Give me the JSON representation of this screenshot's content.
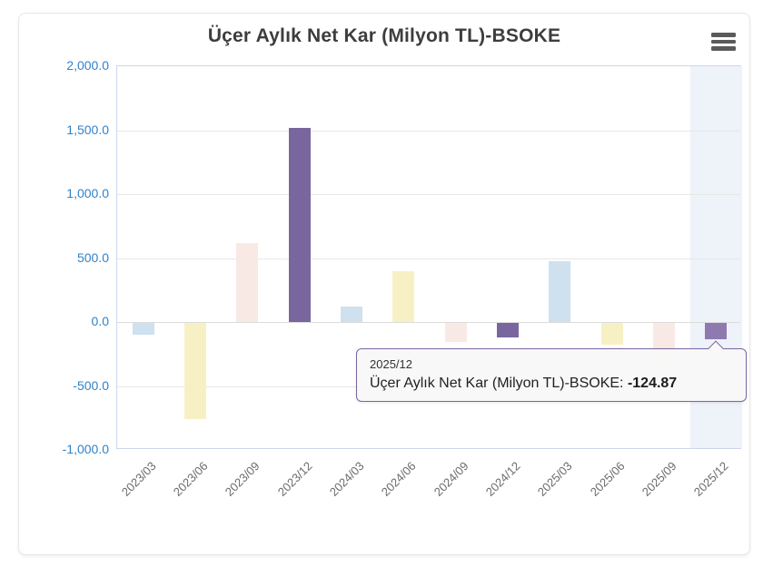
{
  "card": {
    "title": "Üçer Aylık Net Kar (Milyon TL)-BSOKE"
  },
  "chart_data": {
    "type": "bar",
    "title": "Üçer Aylık Net Kar (Milyon TL)-BSOKE",
    "categories": [
      "2023/03",
      "2023/06",
      "2023/09",
      "2023/12",
      "2024/03",
      "2024/06",
      "2024/09",
      "2024/12",
      "2025/03",
      "2025/06",
      "2025/09",
      "2025/12"
    ],
    "values": [
      -95,
      -750,
      620,
      1520,
      120,
      400,
      -150,
      -115,
      475,
      -170,
      -350,
      -124.87
    ],
    "xlabel": "",
    "ylabel": "",
    "ylim": [
      -1000,
      2000
    ],
    "yticks": {
      "values": [
        2000,
        1500,
        1000,
        500,
        0,
        -500,
        -1000
      ],
      "labels": [
        "2,000.0",
        "1,500.0",
        "1,000.0",
        "500.0",
        "0.0",
        "-500.0",
        "-1,000.0"
      ]
    },
    "grid": true,
    "legend": "none",
    "bar_palette": [
      "#cfe0ee",
      "#f8f0c5",
      "#f8e9e4",
      "#7a669e"
    ],
    "highlight_index": 11,
    "highlight_bar_color": "#8f7ab0",
    "highlight_band_color": "#eef2f9",
    "axis_tick_color": "#3182c8",
    "category_label_color": "#6b6b6b"
  },
  "tooltip": {
    "header": "2025/12",
    "series_label": "Üçer Aylık Net Kar (Milyon TL)-BSOKE",
    "separator": ": ",
    "value": "-124.87",
    "border_color": "#7a66a0"
  },
  "icons": {
    "menu": "hamburger-icon"
  }
}
